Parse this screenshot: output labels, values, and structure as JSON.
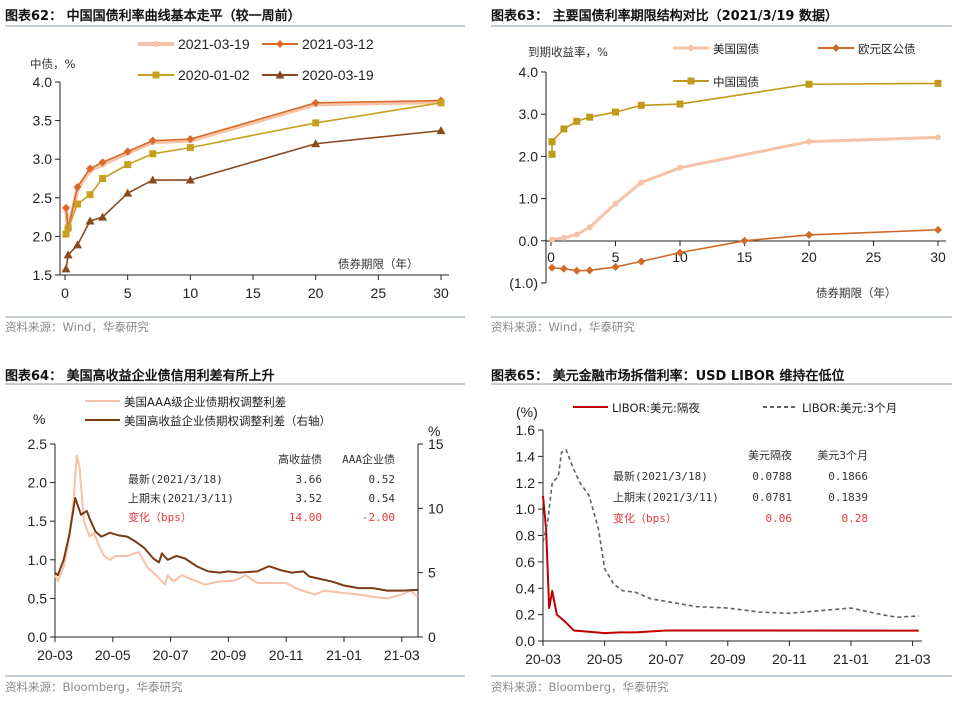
{
  "colors": {
    "rule": "#8899aa",
    "source": "#8a8a8a",
    "red_text": "#e8383d"
  },
  "chart_data": [
    {
      "id": "c62",
      "type": "line",
      "title": "图表62： 中国国债利率曲线基本走平（较一周前）",
      "ylabel": "中债，%",
      "xlabel": "债券期限（年）",
      "xlim": [
        0,
        30
      ],
      "ylim": [
        1.5,
        4.0
      ],
      "xticks": [
        0,
        5,
        10,
        15,
        20,
        25,
        30
      ],
      "yticks": [
        "1.5",
        "2.0",
        "2.5",
        "3.0",
        "3.5",
        "4.0"
      ],
      "source": "资料来源：Wind，华泰研究",
      "series": [
        {
          "name": "2021-03-19",
          "color": "#f6c3a6",
          "marker": "circle",
          "width": 4,
          "x": [
            0.08,
            0.25,
            1,
            2,
            3,
            5,
            7,
            10,
            20,
            30
          ],
          "values": [
            2.35,
            2.08,
            2.62,
            2.85,
            2.93,
            3.08,
            3.22,
            3.24,
            3.71,
            3.74
          ]
        },
        {
          "name": "2021-03-12",
          "color": "#d8692a",
          "marker": "diamond",
          "width": 1.6,
          "x": [
            0.08,
            0.25,
            1,
            2,
            3,
            5,
            7,
            10,
            20,
            30
          ],
          "values": [
            2.37,
            2.1,
            2.64,
            2.88,
            2.96,
            3.1,
            3.24,
            3.26,
            3.73,
            3.76
          ]
        },
        {
          "name": "2020-01-02",
          "color": "#c8a020",
          "marker": "square",
          "width": 1.6,
          "x": [
            0.08,
            0.25,
            1,
            2,
            3,
            5,
            7,
            10,
            20,
            30
          ],
          "values": [
            2.03,
            2.11,
            2.42,
            2.54,
            2.75,
            2.93,
            3.07,
            3.15,
            3.47,
            3.73
          ]
        },
        {
          "name": "2020-03-19",
          "color": "#8a4a1c",
          "marker": "triangle",
          "width": 1.6,
          "x": [
            0.08,
            0.25,
            1,
            2,
            3,
            5,
            7,
            10,
            20,
            30
          ],
          "values": [
            1.58,
            1.76,
            1.89,
            2.2,
            2.25,
            2.56,
            2.73,
            2.73,
            3.2,
            3.37
          ]
        }
      ]
    },
    {
      "id": "c63",
      "type": "line",
      "title": "图表63： 主要国债利率期限结构对比（2021/3/19 数据）",
      "ylabel": "到期收益率，%",
      "xlabel": "债券期限（年）",
      "xlim": [
        0,
        30
      ],
      "ylim": [
        -1.0,
        4.0
      ],
      "xticks": [
        0,
        5,
        10,
        15,
        20,
        25,
        30
      ],
      "yticks": [
        "(1.0)",
        "0.0",
        "1.0",
        "2.0",
        "3.0",
        "4.0"
      ],
      "source": "资料来源：Wind，华泰研究",
      "series": [
        {
          "name": "美国国债",
          "color": "#f6c3a6",
          "marker": "circle",
          "width": 3,
          "x": [
            0.08,
            1,
            2,
            3,
            5,
            7,
            10,
            20,
            30
          ],
          "values": [
            0.03,
            0.07,
            0.15,
            0.32,
            0.88,
            1.38,
            1.73,
            2.35,
            2.45
          ]
        },
        {
          "name": "欧元区公债",
          "color": "#d06a28",
          "marker": "diamond",
          "width": 1.6,
          "x": [
            0.08,
            1,
            2,
            3,
            5,
            7,
            10,
            15,
            20,
            30
          ],
          "values": [
            -0.64,
            -0.66,
            -0.71,
            -0.7,
            -0.62,
            -0.49,
            -0.28,
            0.0,
            0.14,
            0.26
          ]
        },
        {
          "name": "中国国债",
          "color": "#c09a18",
          "marker": "square",
          "width": 1.6,
          "x": [
            0.08,
            0.08,
            1,
            2,
            3,
            5,
            7,
            10,
            20,
            30
          ],
          "values": [
            2.05,
            2.35,
            2.65,
            2.83,
            2.93,
            3.05,
            3.21,
            3.24,
            3.71,
            3.73
          ]
        }
      ]
    },
    {
      "id": "c64",
      "type": "line",
      "title": "图表64： 美国高收益企业债信用利差有所上升",
      "ylabel": "%",
      "ylabel_right": "%",
      "x_unit": "months since 2020-03",
      "xlim": [
        0,
        12.55
      ],
      "ylim": [
        0,
        2.5
      ],
      "ylim_right": [
        0,
        15
      ],
      "xticks": [
        "20-03",
        "20-05",
        "20-07",
        "20-09",
        "20-11",
        "21-01",
        "21-03"
      ],
      "yticks": [
        "0.0",
        "0.5",
        "1.0",
        "1.5",
        "2.0",
        "2.5"
      ],
      "yticks_right": [
        "0",
        "5",
        "10",
        "15"
      ],
      "source": "资料来源：Bloomberg，华泰研究",
      "table": {
        "headers": [
          "高收益债",
          "AAA企业债"
        ],
        "rows": [
          {
            "label": "最新(2021/3/18)",
            "values": [
              "3.66",
              "0.52"
            ]
          },
          {
            "label": "上期末(2021/3/11)",
            "values": [
              "3.52",
              "0.54"
            ]
          },
          {
            "label": "变化（bps）",
            "values": [
              "14.00",
              "-2.00"
            ]
          }
        ]
      },
      "series": [
        {
          "name": "美国AAA级企业债期权调整利差",
          "axis": "left",
          "color": "#f6c3a6",
          "width": 2,
          "x": [
            0,
            0.1,
            0.3,
            0.5,
            0.65,
            0.75,
            0.85,
            1.0,
            1.2,
            1.35,
            1.5,
            1.7,
            1.9,
            2.1,
            2.5,
            2.9,
            3.2,
            3.5,
            3.8,
            3.9,
            4.1,
            4.4,
            4.7,
            5.2,
            5.7,
            6.2,
            6.6,
            7.0,
            7.6,
            8.0,
            8.4,
            9.0,
            9.3,
            10,
            10.5,
            11,
            11.5,
            12,
            12.3,
            12.55
          ],
          "values": [
            0.8,
            0.72,
            0.9,
            1.3,
            1.8,
            2.35,
            2.2,
            1.5,
            1.3,
            1.35,
            1.2,
            1.05,
            1.0,
            1.05,
            1.05,
            1.1,
            0.9,
            0.8,
            0.68,
            0.8,
            0.72,
            0.8,
            0.75,
            0.68,
            0.72,
            0.73,
            0.8,
            0.7,
            0.7,
            0.7,
            0.62,
            0.55,
            0.6,
            0.57,
            0.55,
            0.52,
            0.5,
            0.55,
            0.6,
            0.52
          ]
        },
        {
          "name": "美国高收益企业债期权调整利差（右轴）",
          "axis": "right",
          "color": "#7a3a12",
          "width": 2,
          "x": [
            0,
            0.1,
            0.3,
            0.5,
            0.7,
            0.9,
            1.1,
            1.2,
            1.4,
            1.6,
            1.9,
            2.2,
            2.5,
            2.8,
            3.1,
            3.4,
            3.6,
            3.7,
            3.9,
            4.2,
            4.5,
            4.9,
            5.3,
            5.7,
            6.0,
            6.4,
            7.0,
            7.4,
            7.8,
            8.2,
            8.6,
            8.8,
            9.2,
            9.6,
            10,
            10.5,
            11,
            11.5,
            12,
            12.55
          ],
          "values": [
            5,
            4.8,
            6,
            8,
            10.8,
            9.5,
            9.8,
            9.2,
            8.2,
            7.8,
            8.1,
            7.9,
            7.8,
            7.4,
            6.9,
            6.1,
            5.8,
            6.5,
            6,
            6.3,
            6.1,
            5.5,
            5.1,
            5.0,
            5.1,
            5.0,
            5.1,
            5.5,
            5.2,
            5.0,
            5.1,
            4.7,
            4.5,
            4.3,
            4.0,
            3.8,
            3.8,
            3.6,
            3.6,
            3.66
          ]
        }
      ]
    },
    {
      "id": "c65",
      "type": "line",
      "title": "图表65： 美元金融市场拆借利率：USD LIBOR 维持在低位",
      "ylabel": "(%)",
      "x_unit": "months since 2020-03",
      "xlim": [
        0,
        12.2
      ],
      "ylim": [
        0,
        1.6
      ],
      "xticks": [
        "20-03",
        "20-05",
        "20-07",
        "20-09",
        "20-11",
        "21-01",
        "21-03"
      ],
      "yticks": [
        "0.0",
        "0.2",
        "0.4",
        "0.6",
        "0.8",
        "1.0",
        "1.2",
        "1.4",
        "1.6"
      ],
      "source": "资料来源：Bloomberg，华泰研究",
      "table": {
        "headers": [
          "美元隔夜",
          "美元3个月"
        ],
        "rows": [
          {
            "label": "最新(2021/3/18)",
            "values": [
              "0.0788",
              "0.1866"
            ]
          },
          {
            "label": "上期末(2021/3/11)",
            "values": [
              "0.0781",
              "0.1839"
            ]
          },
          {
            "label": "变化（bps）",
            "values": [
              "0.06",
              "0.28"
            ]
          }
        ]
      },
      "series": [
        {
          "name": "LIBOR:美元:隔夜",
          "color": "#c00000",
          "width": 2,
          "dash": "",
          "x": [
            0,
            0.1,
            0.2,
            0.3,
            0.45,
            0.7,
            1.0,
            1.5,
            2,
            2.5,
            3,
            4,
            12.2
          ],
          "values": [
            1.1,
            0.85,
            0.25,
            0.38,
            0.2,
            0.15,
            0.08,
            0.07,
            0.06,
            0.065,
            0.065,
            0.08,
            0.079
          ]
        },
        {
          "name": "LIBOR:美元:3个月",
          "color": "#606060",
          "width": 1.6,
          "dash": "4,3",
          "x": [
            0,
            0.15,
            0.3,
            0.5,
            0.6,
            0.75,
            1,
            1.2,
            1.5,
            1.8,
            2,
            2.3,
            2.6,
            3,
            3.5,
            4,
            4.5,
            5,
            6,
            7,
            8,
            9,
            10,
            11,
            11.5,
            12.2
          ],
          "values": [
            0.75,
            0.9,
            1.2,
            1.25,
            1.43,
            1.45,
            1.3,
            1.2,
            1.1,
            0.85,
            0.55,
            0.43,
            0.38,
            0.37,
            0.32,
            0.3,
            0.28,
            0.26,
            0.25,
            0.22,
            0.21,
            0.23,
            0.25,
            0.2,
            0.18,
            0.19
          ]
        }
      ]
    }
  ]
}
